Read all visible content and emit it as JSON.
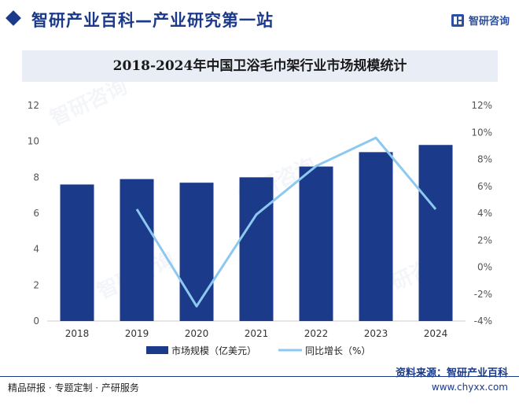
{
  "header": {
    "title": "智研产业百科—产业研究第一站",
    "logo_text": "智研咨询"
  },
  "watermark_text": "智研咨询",
  "chart_data": {
    "type": "bar",
    "title": "2018-2024年中国卫浴毛巾架行业市场规模统计",
    "categories": [
      "2018",
      "2019",
      "2020",
      "2021",
      "2022",
      "2023",
      "2024"
    ],
    "series": [
      {
        "name": "市场规模（亿美元）",
        "type": "bar",
        "axis": "left",
        "color": "#1b3a8a",
        "values": [
          7.6,
          7.9,
          7.7,
          8.0,
          8.6,
          9.4,
          9.8
        ]
      },
      {
        "name": "同比增长（%）",
        "type": "line",
        "axis": "right",
        "color": "#8cc8ef",
        "values": [
          null,
          4.3,
          -2.9,
          3.9,
          7.5,
          9.6,
          4.3
        ]
      }
    ],
    "y_left": {
      "min": 0,
      "max": 12,
      "ticks": [
        "0",
        "2",
        "4",
        "6",
        "8",
        "10",
        "12"
      ]
    },
    "y_right": {
      "min": -4,
      "max": 12,
      "ticks": [
        "-4%",
        "-2%",
        "0%",
        "2%",
        "4%",
        "6%",
        "8%",
        "10%",
        "12%"
      ]
    },
    "grid": false,
    "legend_position": "bottom"
  },
  "footer": {
    "services": "精品研报 · 专题定制 · 产研服务",
    "source": "资料来源：智研产业百科",
    "url": "www.chyxx.com"
  }
}
